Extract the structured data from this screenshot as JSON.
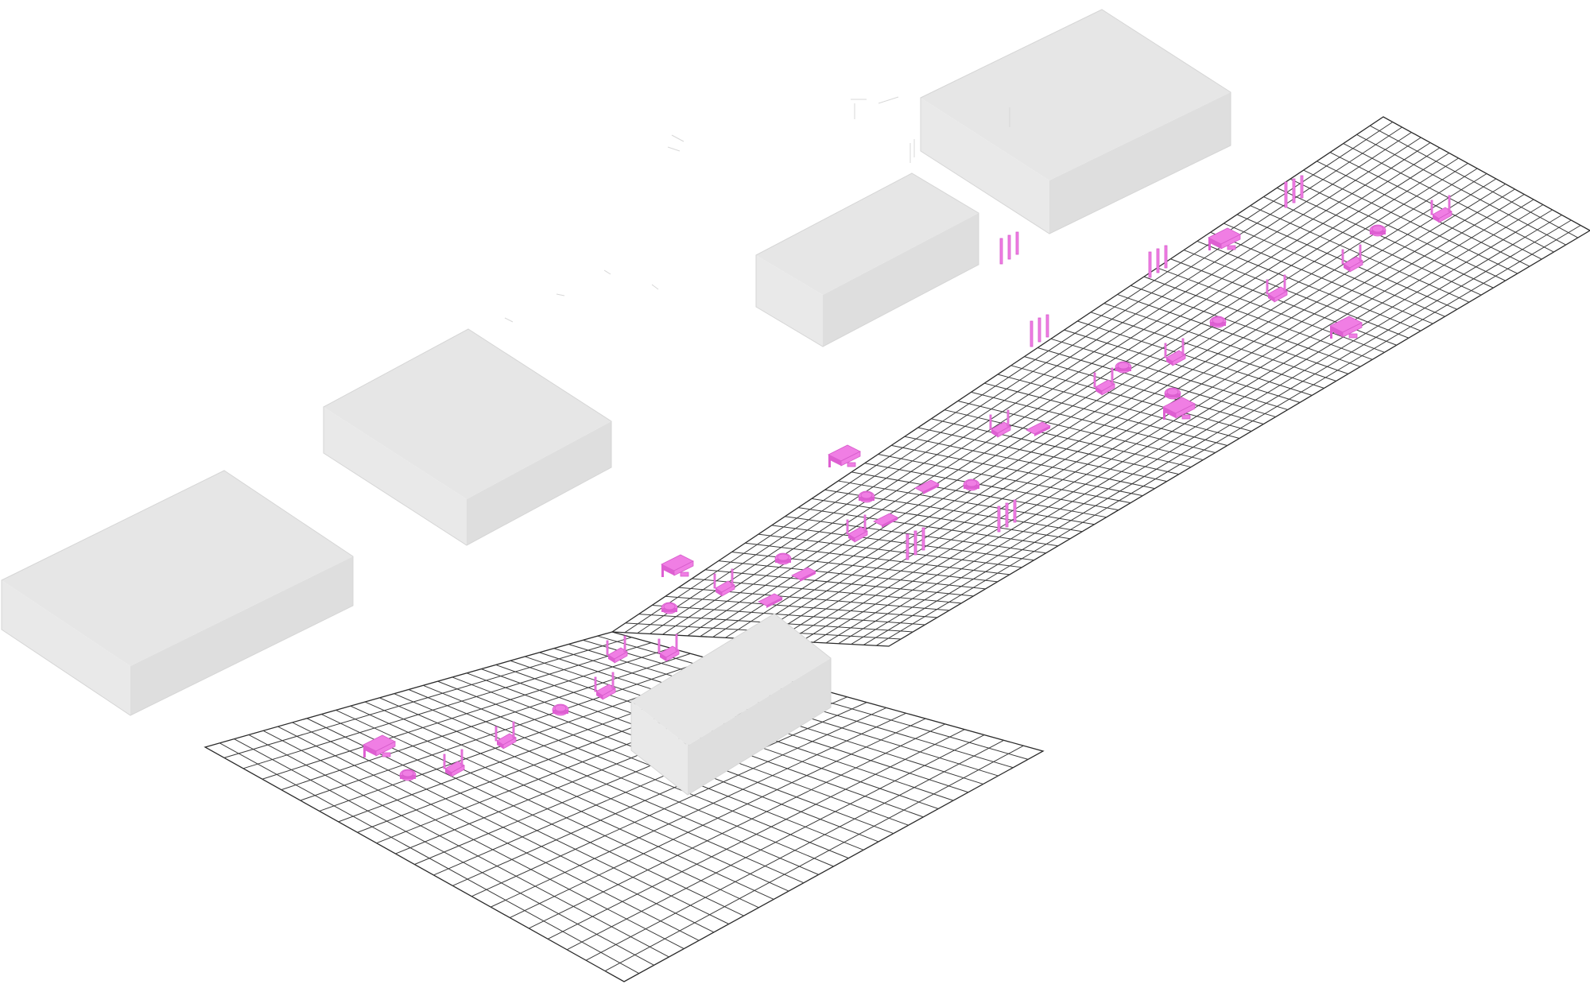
{
  "colors": {
    "background": "#ffffff",
    "grid_line": "#3a3a3a",
    "block_top": "#e6e6e6",
    "block_side_left": "#e9e9e9",
    "block_side_right": "#dedede",
    "furniture": "#f07ee4"
  },
  "scene": {
    "projection": "isometric",
    "floor_grid": {
      "upper_strip": {
        "cells_u": 58,
        "cells_v": 22
      },
      "lower_wing": {
        "cells_u": 28,
        "cells_v": 22
      }
    },
    "blocks": [
      "block-1",
      "block-2",
      "block-3",
      "block-4",
      "block-5-low-wall"
    ],
    "furniture_groups": 40,
    "text": []
  }
}
